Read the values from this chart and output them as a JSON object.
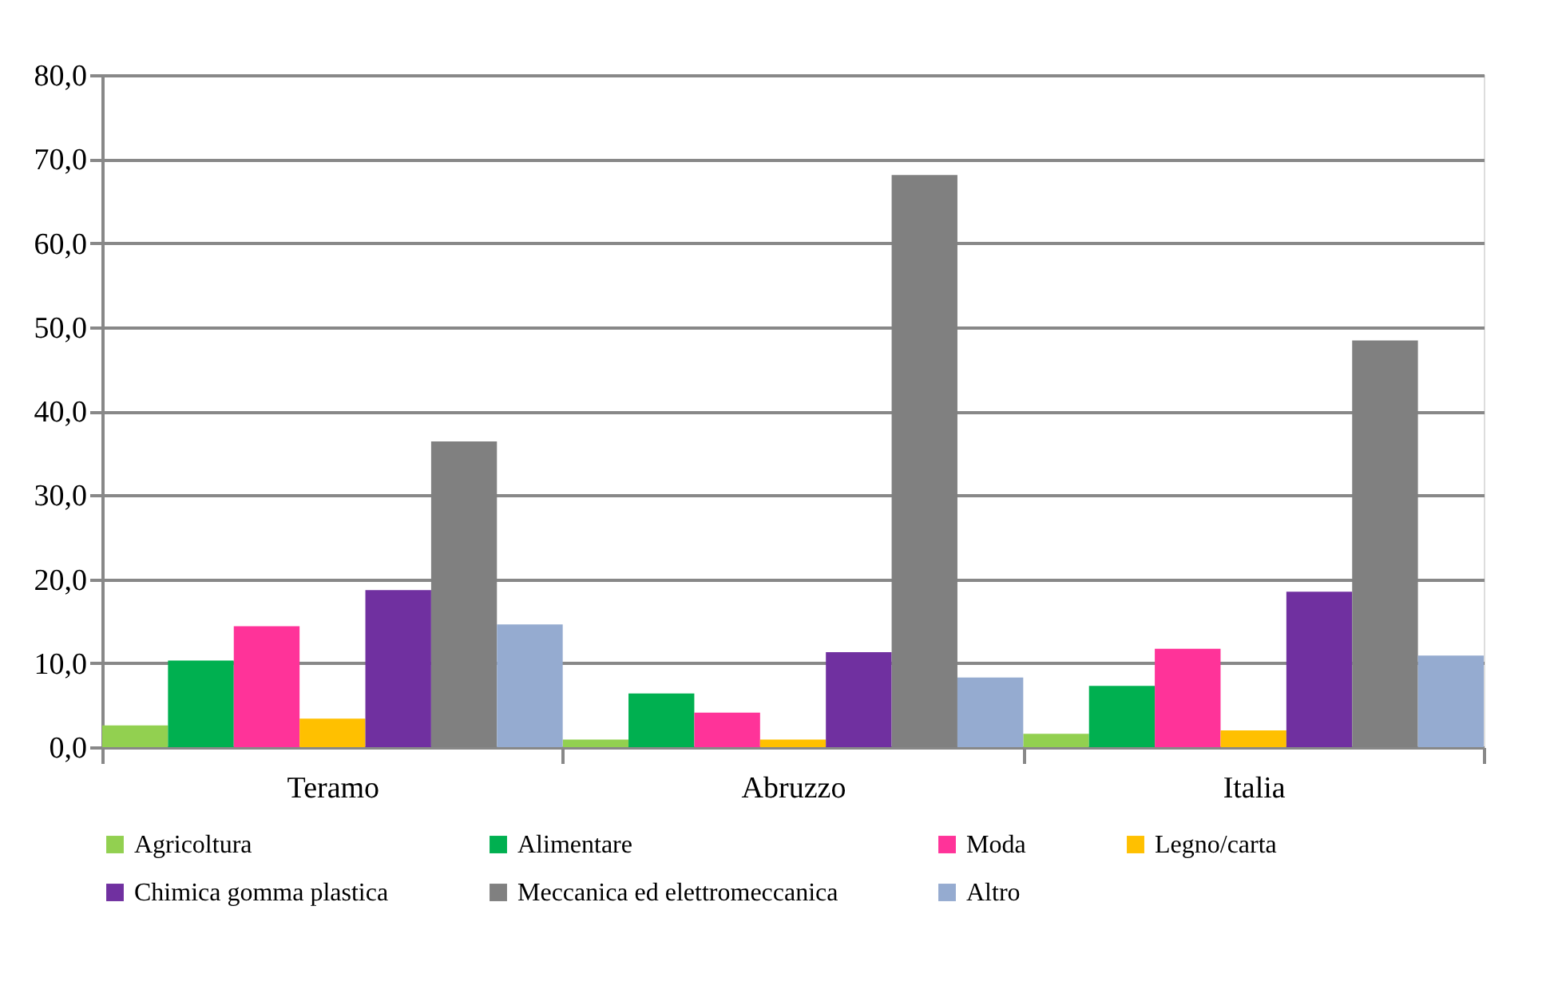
{
  "chart_data": {
    "type": "bar",
    "categories": [
      "Teramo",
      "Abruzzo",
      "Italia"
    ],
    "series": [
      {
        "name": "Agricoltura",
        "color": "#92d050",
        "values": [
          2.6,
          0.9,
          1.6
        ]
      },
      {
        "name": "Alimentare",
        "color": "#00b050",
        "values": [
          10.3,
          6.4,
          7.3
        ]
      },
      {
        "name": "Moda",
        "color": "#ff3399",
        "values": [
          14.4,
          4.1,
          11.7
        ]
      },
      {
        "name": "Legno/carta",
        "color": "#ffc000",
        "values": [
          3.4,
          0.9,
          2.0
        ]
      },
      {
        "name": "Chimica gomma plastica",
        "color": "#7030a0",
        "values": [
          18.7,
          11.3,
          18.5
        ]
      },
      {
        "name": "Meccanica ed elettromeccanica",
        "color": "#808080",
        "values": [
          36.4,
          68.1,
          48.4
        ]
      },
      {
        "name": "Altro",
        "color": "#95abd0",
        "values": [
          14.6,
          8.3,
          10.9
        ]
      }
    ],
    "ylim": [
      0,
      80
    ],
    "yticks": [
      {
        "value": 0,
        "label": "0,0"
      },
      {
        "value": 10,
        "label": "10,0"
      },
      {
        "value": 20,
        "label": "20,0"
      },
      {
        "value": 30,
        "label": "30,0"
      },
      {
        "value": 40,
        "label": "40,0"
      },
      {
        "value": 50,
        "label": "50,0"
      },
      {
        "value": 60,
        "label": "60,0"
      },
      {
        "value": 70,
        "label": "70,0"
      },
      {
        "value": 80,
        "label": "80,0"
      }
    ],
    "grid": "y",
    "legend": "bottom"
  }
}
